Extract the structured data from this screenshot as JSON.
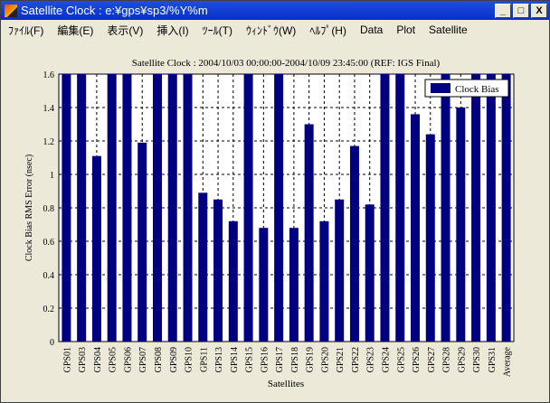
{
  "window": {
    "title": "Satellite Clock : e:¥gps¥sp3/%Y%m",
    "min": "_",
    "max": "□",
    "close": "X"
  },
  "menu": [
    "ﾌｧｲﾙ(F)",
    "編集(E)",
    "表示(V)",
    "挿入(I)",
    "ﾂｰﾙ(T)",
    "ｳｨﾝﾄﾞｳ(W)",
    "ﾍﾙﾌﾟ(H)",
    "Data",
    "Plot",
    "Satellite"
  ],
  "chart_data": {
    "type": "bar",
    "title": "Satellite Clock : 2004/10/03 00:00:00-2004/10/09 23:45:00 (REF: IGS Final)",
    "xlabel": "Satellites",
    "ylabel": "Clock Bias RMS Error (nsec)",
    "ylim": [
      0,
      1.6
    ],
    "yticks": [
      "0",
      "0.2",
      "0.4",
      "0.6",
      "0.8",
      "1",
      "1.2",
      "1.4",
      "1.6"
    ],
    "grid": true,
    "legend": {
      "entries": [
        "Clock Bias"
      ],
      "placement": "top-right"
    },
    "color": "#000080",
    "categories": [
      "GPS01",
      "GPS03",
      "GPS04",
      "GPS05",
      "GPS06",
      "GPS07",
      "GPS08",
      "GPS09",
      "GPS10",
      "GPS11",
      "GPS13",
      "GPS14",
      "GPS15",
      "GPS16",
      "GPS17",
      "GPS18",
      "GPS19",
      "GPS20",
      "GPS21",
      "GPS22",
      "GPS23",
      "GPS24",
      "GPS25",
      "GPS26",
      "GPS27",
      "GPS28",
      "GPS29",
      "GPS30",
      "GPS31",
      "Average"
    ],
    "values": [
      1.6,
      1.6,
      1.11,
      1.6,
      1.6,
      1.19,
      1.6,
      1.6,
      1.6,
      0.89,
      0.85,
      0.72,
      1.6,
      0.68,
      1.6,
      0.68,
      1.3,
      0.72,
      0.85,
      1.17,
      0.82,
      1.6,
      1.6,
      1.36,
      1.24,
      1.6,
      1.4,
      1.6,
      1.6,
      1.6
    ]
  }
}
